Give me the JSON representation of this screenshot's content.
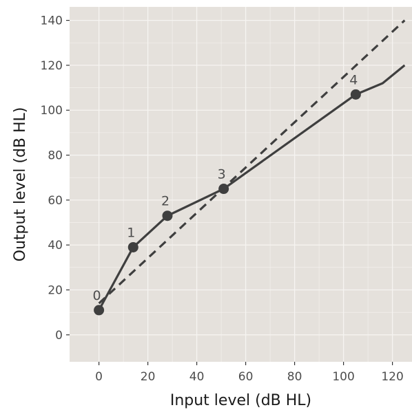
{
  "chart_data": {
    "type": "line",
    "xlabel": "Input level (dB HL)",
    "ylabel": "Output level (dB HL)",
    "xlim": [
      -12,
      128
    ],
    "ylim": [
      -12,
      146
    ],
    "x_ticks": [
      0,
      20,
      40,
      60,
      80,
      100,
      120
    ],
    "y_ticks": [
      0,
      20,
      40,
      60,
      80,
      100,
      120,
      140
    ],
    "grid": true,
    "legend": "none",
    "colors": {
      "panel": "#e5e1dc",
      "grid": "#f6f4f1",
      "line": "#3f3f3f",
      "text": "#4d4d4d"
    },
    "series": [
      {
        "style": "solid",
        "x": [
          0,
          14,
          28,
          51,
          105,
          116,
          125
        ],
        "y": [
          11,
          39,
          53,
          65,
          107,
          112,
          120
        ]
      },
      {
        "style": "dashed",
        "x": [
          0,
          125
        ],
        "y": [
          14,
          140
        ]
      }
    ],
    "points": [
      {
        "label": "0",
        "x": 0,
        "y": 11
      },
      {
        "label": "1",
        "x": 14,
        "y": 39
      },
      {
        "label": "2",
        "x": 28,
        "y": 53
      },
      {
        "label": "3",
        "x": 51,
        "y": 65
      },
      {
        "label": "4",
        "x": 105,
        "y": 107
      }
    ]
  }
}
